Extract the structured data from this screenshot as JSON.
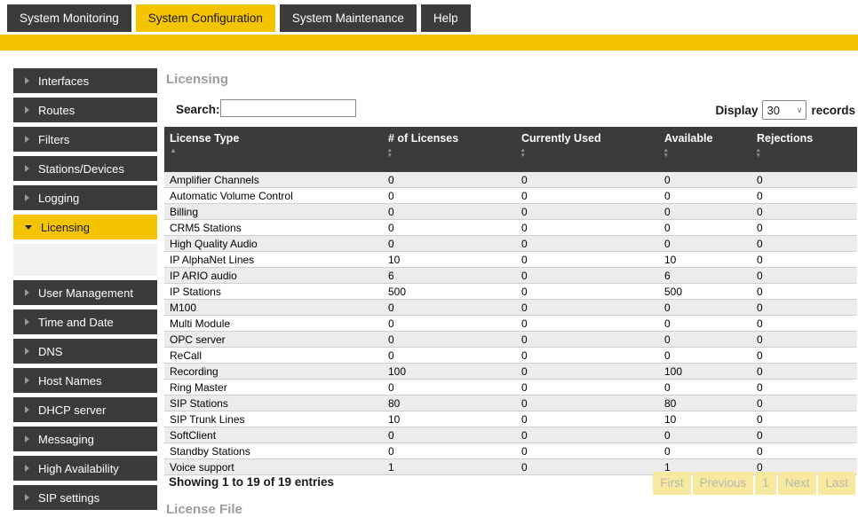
{
  "colors": {
    "accent_yellow": "#f5c400",
    "dark_chrome": "#3b3b3b",
    "pagination_bg": "#f7e9a0",
    "row_stripe": "#ececec",
    "title_gray": "#9d9d9d"
  },
  "tabs": [
    {
      "label": "System Monitoring",
      "active": false
    },
    {
      "label": "System Configuration",
      "active": true
    },
    {
      "label": "System Maintenance",
      "active": false
    },
    {
      "label": "Help",
      "active": false
    }
  ],
  "sidebar": {
    "items": [
      {
        "label": "Interfaces",
        "active": false,
        "icon": "chevron-right-icon"
      },
      {
        "label": "Routes",
        "active": false,
        "icon": "chevron-right-icon"
      },
      {
        "label": "Filters",
        "active": false,
        "icon": "chevron-right-icon"
      },
      {
        "label": "Stations/Devices",
        "active": false,
        "icon": "chevron-right-icon"
      },
      {
        "label": "Logging",
        "active": false,
        "icon": "chevron-right-icon"
      },
      {
        "label": "Licensing",
        "active": true,
        "icon": "chevron-down-icon"
      },
      {
        "label": "User Management",
        "active": false,
        "icon": "chevron-right-icon"
      },
      {
        "label": "Time and Date",
        "active": false,
        "icon": "chevron-right-icon"
      },
      {
        "label": "DNS",
        "active": false,
        "icon": "chevron-right-icon"
      },
      {
        "label": "Host Names",
        "active": false,
        "icon": "chevron-right-icon"
      },
      {
        "label": "DHCP server",
        "active": false,
        "icon": "chevron-right-icon"
      },
      {
        "label": "Messaging",
        "active": false,
        "icon": "chevron-right-icon"
      },
      {
        "label": "High Availability",
        "active": false,
        "icon": "chevron-right-icon"
      },
      {
        "label": "SIP settings",
        "active": false,
        "icon": "chevron-right-icon"
      }
    ]
  },
  "main": {
    "title": "Licensing",
    "search": {
      "label": "Search:",
      "value": ""
    },
    "display": {
      "label": "Display",
      "value": "30",
      "suffix": "records"
    },
    "table": {
      "columns": [
        {
          "label": "License Type",
          "sort": "asc"
        },
        {
          "label": "# of Licenses",
          "sort": "both"
        },
        {
          "label": "Currently Used",
          "sort": "both"
        },
        {
          "label": "Available",
          "sort": "both"
        },
        {
          "label": "Rejections",
          "sort": "both"
        }
      ],
      "rows": [
        [
          "Amplifier Channels",
          "0",
          "0",
          "0",
          "0"
        ],
        [
          "Automatic Volume Control",
          "0",
          "0",
          "0",
          "0"
        ],
        [
          "Billing",
          "0",
          "0",
          "0",
          "0"
        ],
        [
          "CRM5 Stations",
          "0",
          "0",
          "0",
          "0"
        ],
        [
          "High Quality Audio",
          "0",
          "0",
          "0",
          "0"
        ],
        [
          "IP AlphaNet Lines",
          "10",
          "0",
          "10",
          "0"
        ],
        [
          "IP ARIO audio",
          "6",
          "0",
          "6",
          "0"
        ],
        [
          "IP Stations",
          "500",
          "0",
          "500",
          "0"
        ],
        [
          "M100",
          "0",
          "0",
          "0",
          "0"
        ],
        [
          "Multi Module",
          "0",
          "0",
          "0",
          "0"
        ],
        [
          "OPC server",
          "0",
          "0",
          "0",
          "0"
        ],
        [
          "ReCall",
          "0",
          "0",
          "0",
          "0"
        ],
        [
          "Recording",
          "100",
          "0",
          "100",
          "0"
        ],
        [
          "Ring Master",
          "0",
          "0",
          "0",
          "0"
        ],
        [
          "SIP Stations",
          "80",
          "0",
          "80",
          "0"
        ],
        [
          "SIP Trunk Lines",
          "10",
          "0",
          "10",
          "0"
        ],
        [
          "SoftClient",
          "0",
          "0",
          "0",
          "0"
        ],
        [
          "Standby Stations",
          "0",
          "0",
          "0",
          "0"
        ],
        [
          "Voice support",
          "1",
          "0",
          "1",
          "0"
        ]
      ]
    },
    "footer": {
      "showing": "Showing 1 to 19 of 19 entries",
      "pagination": [
        "First",
        "Previous",
        "1",
        "Next",
        "Last"
      ]
    },
    "next_section_title": "License File"
  }
}
